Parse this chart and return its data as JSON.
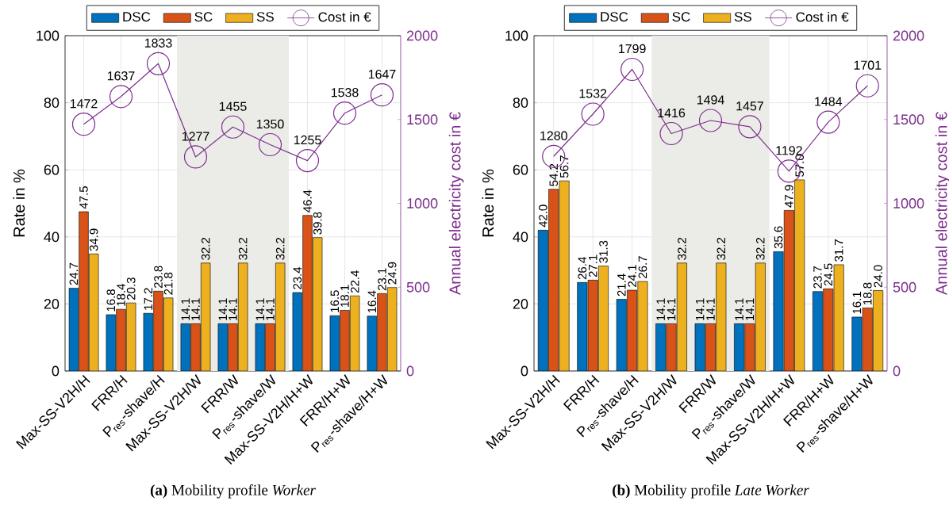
{
  "chart_data": [
    {
      "type": "bar",
      "title": "**(a)** Mobility profile *Worker*",
      "ylabel": "Rate in %",
      "y2label": "Annual electricity cost in €",
      "categories": [
        "Max-SS-V2H/H",
        "FRR/H",
        "P$_{res}$-shave/H",
        "Max-SS-V2H/W",
        "FRR/W",
        "P$_{res}$-shave/W",
        "Max-SS-V2H/H+W",
        "FRR/H+W",
        "P$_{res}$-shave/H+W"
      ],
      "series": [
        {
          "name": "DSC",
          "color": "#0072bd",
          "values": [
            24.7,
            16.8,
            17.2,
            14.1,
            14.1,
            14.1,
            23.4,
            16.5,
            16.4
          ]
        },
        {
          "name": "SC",
          "color": "#d95319",
          "values": [
            47.5,
            18.4,
            23.8,
            14.1,
            14.1,
            14.1,
            46.4,
            18.1,
            23.1
          ]
        },
        {
          "name": "SS",
          "color": "#edb120",
          "values": [
            34.9,
            20.3,
            21.8,
            32.2,
            32.2,
            32.2,
            39.8,
            22.4,
            24.9
          ]
        },
        {
          "name": "Cost in €",
          "type": "line",
          "axis": "y2",
          "marker": "circle",
          "color": "#7e2f8e",
          "values": [
            1472,
            1637,
            1833,
            1277,
            1455,
            1350,
            1255,
            1538,
            1647
          ]
        }
      ],
      "ylim": [
        0,
        100
      ],
      "yticks": [
        0,
        20,
        40,
        60,
        80,
        100
      ],
      "y2lim": [
        0,
        2000
      ],
      "y2ticks": [
        0,
        500,
        1000,
        1500,
        2000
      ],
      "bands": [
        {
          "axis": "x",
          "from": "Max-SS-V2H/W",
          "to": "P$_{res}$-shave/W",
          "color": "#ebebe7"
        }
      ],
      "grid": true,
      "legend": "top",
      "data_labels": true
    },
    {
      "type": "bar",
      "title": "**(b)** Mobility profile *Late Worker*",
      "ylabel": "Rate in %",
      "y2label": "Annual electricity cost in €",
      "categories": [
        "Max-SS-V2H/H",
        "FRR/H",
        "P$_{res}$-shave/H",
        "Max-SS-V2H/W",
        "FRR/W",
        "P$_{res}$-shave/W",
        "Max-SS-V2H/H+W",
        "FRR/H+W",
        "P$_{res}$-shave/H+W"
      ],
      "series": [
        {
          "name": "DSC",
          "color": "#0072bd",
          "values": [
            42.0,
            26.4,
            21.4,
            14.1,
            14.1,
            14.1,
            35.6,
            23.7,
            16.1
          ],
          "value_labels": [
            "42.0",
            "26.4",
            "21.4",
            "14.1",
            "14.1",
            "14.1",
            "35.6",
            "23.7",
            "16.1"
          ]
        },
        {
          "name": "SC",
          "color": "#d95319",
          "values": [
            54.2,
            27.1,
            24.1,
            14.1,
            14.1,
            14.1,
            47.9,
            24.5,
            18.8
          ],
          "value_labels": [
            "54.2",
            "27.1",
            "24.1",
            "14.1",
            "14.1",
            "14.1",
            "47.9",
            "24.5",
            "18.8"
          ]
        },
        {
          "name": "SS",
          "color": "#edb120",
          "values": [
            56.7,
            31.3,
            26.7,
            32.2,
            32.2,
            32.2,
            57.0,
            31.7,
            24.0
          ],
          "value_labels": [
            "56.7",
            "31.3",
            "26.7",
            "32.2",
            "32.2",
            "32.2",
            "57.0",
            "31.7",
            "24.0"
          ]
        },
        {
          "name": "Cost in €",
          "type": "line",
          "axis": "y2",
          "marker": "circle",
          "color": "#7e2f8e",
          "values": [
            1280,
            1532,
            1799,
            1416,
            1494,
            1457,
            1192,
            1484,
            1701
          ]
        }
      ],
      "ylim": [
        0,
        100
      ],
      "yticks": [
        0,
        20,
        40,
        60,
        80,
        100
      ],
      "y2lim": [
        0,
        2000
      ],
      "y2ticks": [
        0,
        500,
        1000,
        1500,
        2000
      ],
      "bands": [
        {
          "axis": "x",
          "from": "Max-SS-V2H/W",
          "to": "P$_{res}$-shave/W",
          "color": "#ebebe7"
        }
      ],
      "grid": true,
      "legend": "top",
      "data_labels": true
    }
  ]
}
